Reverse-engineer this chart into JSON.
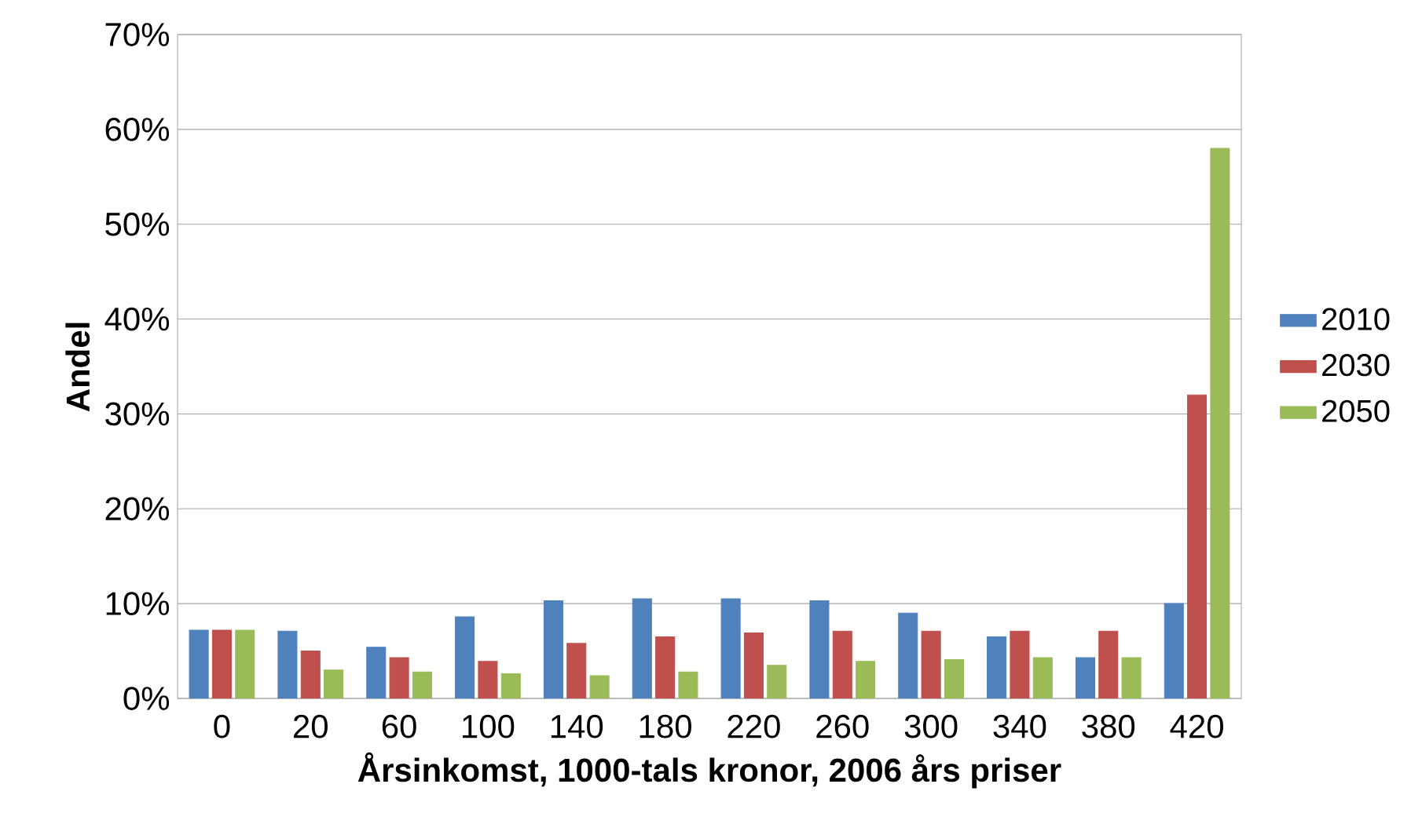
{
  "chart_data": {
    "type": "bar",
    "xlabel": "Årsinkomst, 1000-tals kronor, 2006 års priser",
    "ylabel": "Andel",
    "categories": [
      "0",
      "20",
      "60",
      "100",
      "140",
      "180",
      "220",
      "260",
      "300",
      "340",
      "380",
      "420"
    ],
    "series": [
      {
        "name": "2010",
        "color": "#4f81bd",
        "values": [
          7.2,
          7.1,
          5.4,
          8.6,
          10.3,
          10.5,
          10.5,
          10.3,
          9.0,
          6.5,
          4.3,
          10.0
        ]
      },
      {
        "name": "2030",
        "color": "#c0504d",
        "values": [
          7.2,
          5.0,
          4.3,
          3.9,
          5.8,
          6.5,
          6.9,
          7.1,
          7.1,
          7.1,
          7.1,
          32
        ]
      },
      {
        "name": "2050",
        "color": "#9bbb59",
        "values": [
          7.2,
          3.0,
          2.8,
          2.6,
          2.4,
          2.8,
          3.5,
          3.9,
          4.1,
          4.3,
          4.3,
          58
        ]
      }
    ],
    "ylim": [
      0,
      70
    ],
    "yticks": [
      {
        "value": 0,
        "label": "0%"
      },
      {
        "value": 10,
        "label": "10%"
      },
      {
        "value": 20,
        "label": "20%"
      },
      {
        "value": 30,
        "label": "30%"
      },
      {
        "value": 40,
        "label": "40%"
      },
      {
        "value": 50,
        "label": "50%"
      },
      {
        "value": 60,
        "label": "60%"
      },
      {
        "value": 70,
        "label": "70%"
      }
    ],
    "grid": "y",
    "legend": "right"
  }
}
